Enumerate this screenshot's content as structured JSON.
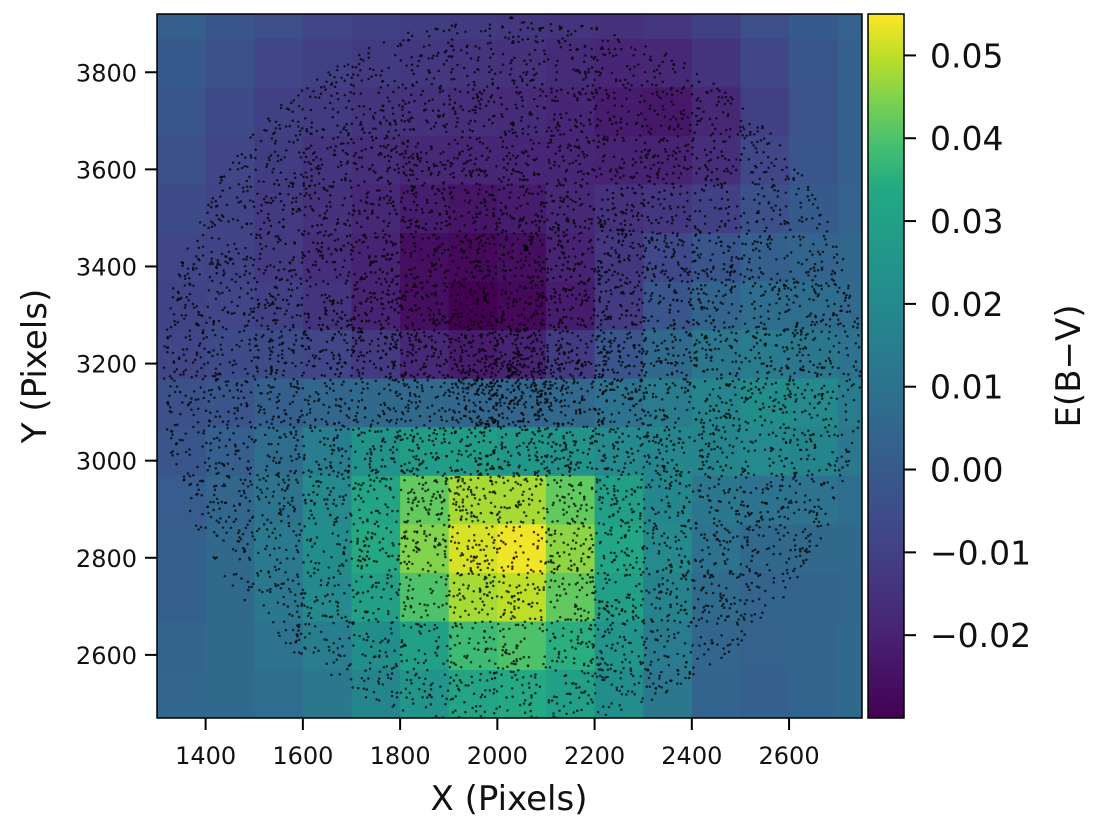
{
  "chart_data": {
    "type": "heatmap",
    "title": "",
    "xlabel": "X (Pixels)",
    "ylabel": "Y (Pixels)",
    "xlim": [
      1300,
      2750
    ],
    "ylim": [
      2470,
      3920
    ],
    "x_ticks": [
      {
        "value": 1400,
        "label": "1400"
      },
      {
        "value": 1600,
        "label": "1600"
      },
      {
        "value": 1800,
        "label": "1800"
      },
      {
        "value": 2000,
        "label": "2000"
      },
      {
        "value": 2200,
        "label": "2200"
      },
      {
        "value": 2400,
        "label": "2400"
      },
      {
        "value": 2600,
        "label": "2600"
      }
    ],
    "y_ticks": [
      {
        "value": 2600,
        "label": "2600"
      },
      {
        "value": 2800,
        "label": "2800"
      },
      {
        "value": 3000,
        "label": "3000"
      },
      {
        "value": 3200,
        "label": "3200"
      },
      {
        "value": 3400,
        "label": "3400"
      },
      {
        "value": 3600,
        "label": "3600"
      },
      {
        "value": 3800,
        "label": "3800"
      }
    ],
    "grid": false,
    "cells": {
      "x_edges": [
        1300,
        1400,
        1500,
        1600,
        1700,
        1800,
        1900,
        2000,
        2100,
        2200,
        2300,
        2400,
        2500,
        2600,
        2700,
        2750
      ],
      "y_edges": [
        2470,
        2570,
        2670,
        2770,
        2870,
        2970,
        3070,
        3170,
        3270,
        3370,
        3470,
        3570,
        3670,
        3770,
        3870,
        3920
      ],
      "values": [
        [
          0.005,
          0.006,
          0.008,
          0.012,
          0.018,
          0.025,
          0.032,
          0.034,
          0.03,
          0.022,
          0.012,
          0.004,
          0.002,
          0.004,
          0.006
        ],
        [
          0.004,
          0.006,
          0.01,
          0.015,
          0.022,
          0.03,
          0.038,
          0.04,
          0.035,
          0.025,
          0.014,
          0.005,
          0.003,
          0.004,
          0.006
        ],
        [
          0.002,
          0.006,
          0.012,
          0.02,
          0.03,
          0.04,
          0.048,
          0.05,
          0.042,
          0.03,
          0.017,
          0.007,
          0.004,
          0.004,
          0.005
        ],
        [
          0.002,
          0.006,
          0.013,
          0.022,
          0.034,
          0.045,
          0.052,
          0.054,
          0.046,
          0.033,
          0.02,
          0.01,
          0.006,
          0.006,
          0.006
        ],
        [
          0.001,
          0.005,
          0.011,
          0.02,
          0.032,
          0.042,
          0.048,
          0.048,
          0.042,
          0.03,
          0.019,
          0.012,
          0.01,
          0.01,
          0.008
        ],
        [
          -0.002,
          0.002,
          0.008,
          0.015,
          0.024,
          0.028,
          0.028,
          0.026,
          0.024,
          0.02,
          0.019,
          0.018,
          0.02,
          0.018,
          0.012
        ],
        [
          -0.004,
          -0.002,
          0.002,
          0.005,
          0.006,
          0.006,
          0.005,
          0.005,
          0.006,
          0.01,
          0.014,
          0.018,
          0.022,
          0.02,
          0.014
        ],
        [
          -0.008,
          -0.006,
          -0.006,
          -0.008,
          -0.012,
          -0.018,
          -0.022,
          -0.02,
          -0.012,
          -0.002,
          0.006,
          0.012,
          0.014,
          0.012,
          0.01
        ],
        [
          -0.009,
          -0.008,
          -0.01,
          -0.014,
          -0.02,
          -0.026,
          -0.03,
          -0.028,
          -0.022,
          -0.012,
          -0.002,
          0.004,
          0.008,
          0.008,
          0.007
        ],
        [
          -0.008,
          -0.009,
          -0.012,
          -0.016,
          -0.02,
          -0.026,
          -0.028,
          -0.026,
          -0.02,
          -0.013,
          -0.007,
          -0.002,
          0.002,
          0.004,
          0.005
        ],
        [
          -0.006,
          -0.009,
          -0.012,
          -0.015,
          -0.018,
          -0.022,
          -0.024,
          -0.022,
          -0.018,
          -0.015,
          -0.013,
          -0.01,
          -0.004,
          0.0,
          0.003
        ],
        [
          -0.004,
          -0.008,
          -0.011,
          -0.014,
          -0.016,
          -0.018,
          -0.019,
          -0.019,
          -0.019,
          -0.02,
          -0.02,
          -0.016,
          -0.008,
          -0.002,
          0.002
        ],
        [
          -0.002,
          -0.006,
          -0.01,
          -0.012,
          -0.014,
          -0.015,
          -0.016,
          -0.017,
          -0.019,
          -0.022,
          -0.023,
          -0.018,
          -0.01,
          -0.003,
          0.002
        ],
        [
          0.0,
          -0.004,
          -0.008,
          -0.01,
          -0.012,
          -0.013,
          -0.014,
          -0.015,
          -0.017,
          -0.019,
          -0.018,
          -0.014,
          -0.008,
          -0.002,
          0.002
        ],
        [
          0.002,
          -0.002,
          -0.005,
          -0.008,
          -0.01,
          -0.011,
          -0.012,
          -0.013,
          -0.014,
          -0.015,
          -0.013,
          -0.01,
          -0.005,
          0.0,
          0.003
        ]
      ]
    },
    "overlay": {
      "type": "scatter",
      "color": "#000000",
      "description_region": {
        "center": [
          2030,
          3180
        ],
        "radius": 720,
        "clip_y": [
          2470,
          3920
        ]
      },
      "seed": 7,
      "count": 9000
    },
    "colorbar": {
      "label": "E(B−V)",
      "vmin": -0.03,
      "vmax": 0.055,
      "ticks": [
        {
          "value": -0.02,
          "label": "−0.02"
        },
        {
          "value": -0.01,
          "label": "−0.01"
        },
        {
          "value": 0.0,
          "label": "0.00"
        },
        {
          "value": 0.01,
          "label": "0.01"
        },
        {
          "value": 0.02,
          "label": "0.02"
        },
        {
          "value": 0.03,
          "label": "0.03"
        },
        {
          "value": 0.04,
          "label": "0.04"
        },
        {
          "value": 0.05,
          "label": "0.05"
        }
      ],
      "colormap": "viridis"
    }
  }
}
